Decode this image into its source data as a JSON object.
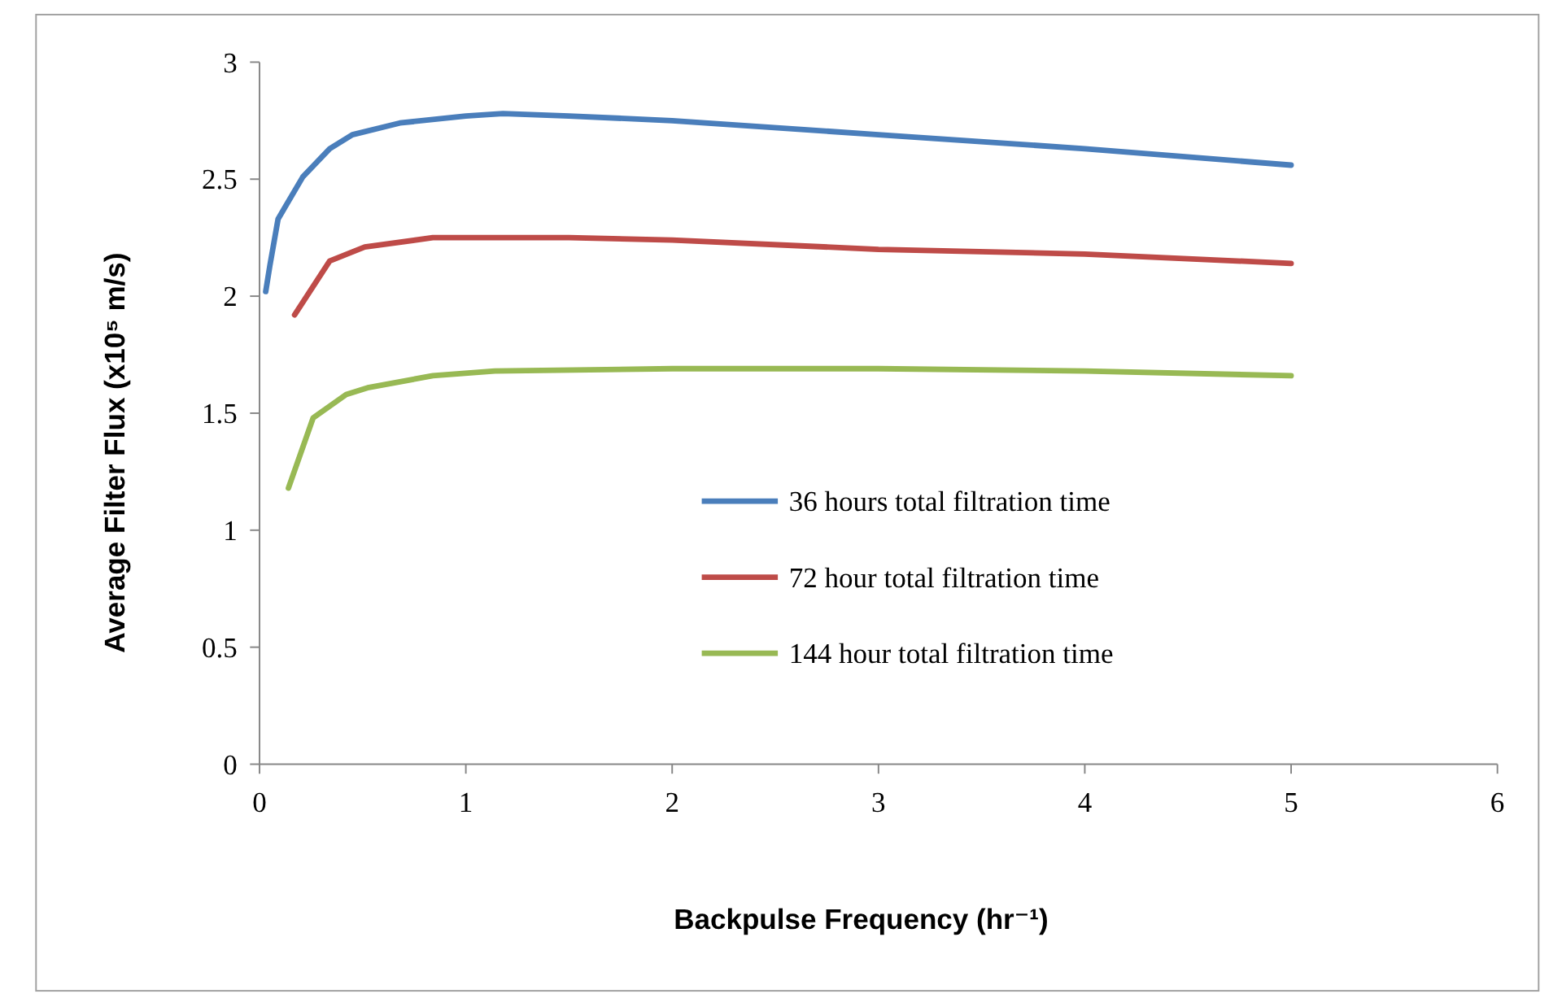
{
  "chart_data": {
    "type": "line",
    "xlabel": "Backpulse Frequency (hr⁻¹)",
    "ylabel": "Average Filter Flux (x10⁵ m/s)",
    "xlim": [
      0,
      6
    ],
    "xticks": [
      0,
      1,
      2,
      3,
      4,
      5,
      6
    ],
    "ylim": [
      0,
      3
    ],
    "yticks": [
      0,
      0.5,
      1,
      1.5,
      2,
      2.5,
      3
    ],
    "grid": false,
    "legend": "right",
    "marker": "none",
    "line_style": "solid",
    "series": [
      {
        "name": "36 hours total filtration time",
        "color": "#4a7ebb",
        "x": [
          0.03,
          0.05,
          0.09,
          0.21,
          0.34,
          0.45,
          0.68,
          1.0,
          1.18,
          1.5,
          2,
          3,
          4,
          5
        ],
        "values": [
          2.02,
          2.13,
          2.33,
          2.51,
          2.63,
          2.69,
          2.74,
          2.77,
          2.78,
          2.77,
          2.75,
          2.69,
          2.63,
          2.56
        ]
      },
      {
        "name": "72 hour total filtration time",
        "color": "#be4b48",
        "x": [
          0.17,
          0.34,
          0.51,
          0.84,
          1.5,
          2,
          3,
          4,
          5
        ],
        "values": [
          1.92,
          2.15,
          2.21,
          2.25,
          2.25,
          2.24,
          2.2,
          2.18,
          2.14
        ]
      },
      {
        "name": "144 hour total filtration time",
        "color": "#98b954",
        "x": [
          0.14,
          0.26,
          0.42,
          0.53,
          0.84,
          1.14,
          2,
          3,
          4,
          5
        ],
        "values": [
          1.18,
          1.48,
          1.58,
          1.61,
          1.66,
          1.68,
          1.69,
          1.69,
          1.68,
          1.66
        ]
      }
    ]
  }
}
